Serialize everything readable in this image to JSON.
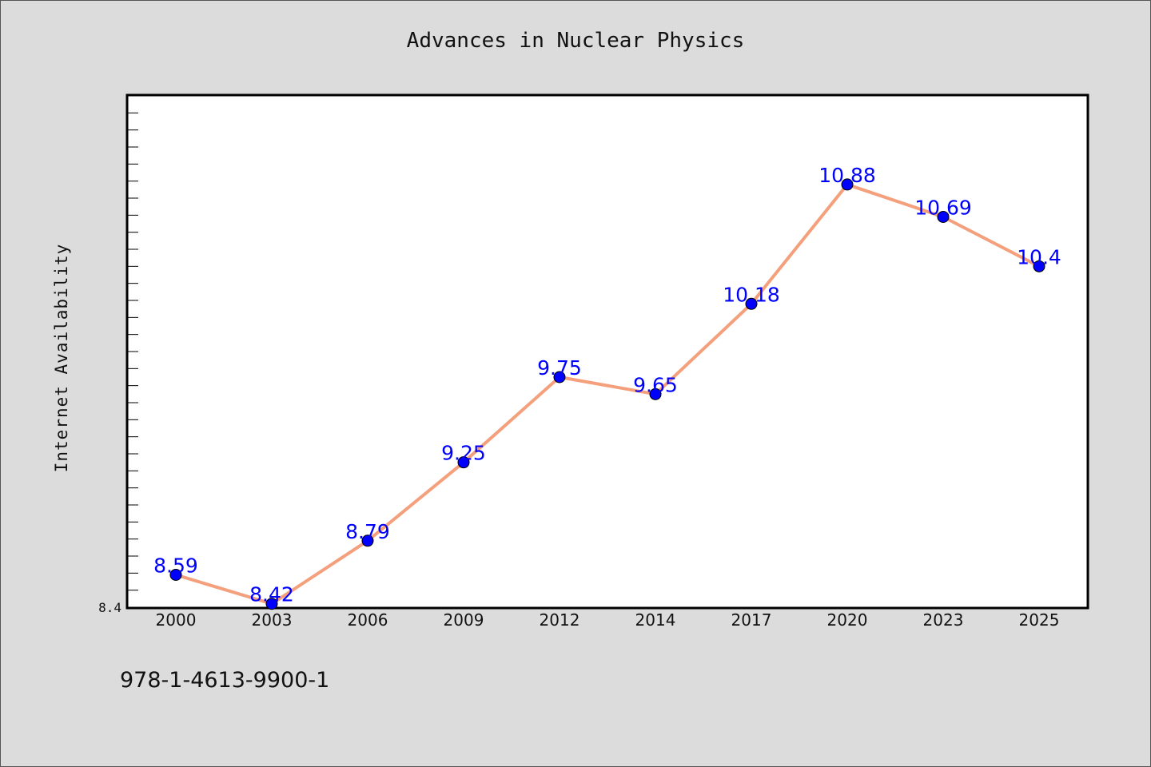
{
  "chart_data": {
    "type": "line",
    "title": "Advances in Nuclear Physics",
    "xlabel": "",
    "ylabel": "Internet Availability",
    "categories": [
      "2000",
      "2003",
      "2006",
      "2009",
      "2012",
      "2014",
      "2017",
      "2020",
      "2023",
      "2025"
    ],
    "series": [
      {
        "values": [
          8.59,
          8.42,
          8.79,
          9.25,
          9.75,
          9.65,
          10.18,
          10.88,
          10.69,
          10.4
        ]
      }
    ],
    "data_labels": [
      "8.59",
      "8.42",
      "8.79",
      "9.25",
      "9.75",
      "9.65",
      "10.18",
      "10.88",
      "10.69",
      "10.4"
    ],
    "ylim": [
      8.4,
      11.4
    ],
    "y_tick_labels": [
      "8.4"
    ],
    "grid": false,
    "line_color": "#f4a07c",
    "marker_color": "#0000ff",
    "label_color": "#0000ff"
  },
  "footer_text": "978-1-4613-9900-1"
}
